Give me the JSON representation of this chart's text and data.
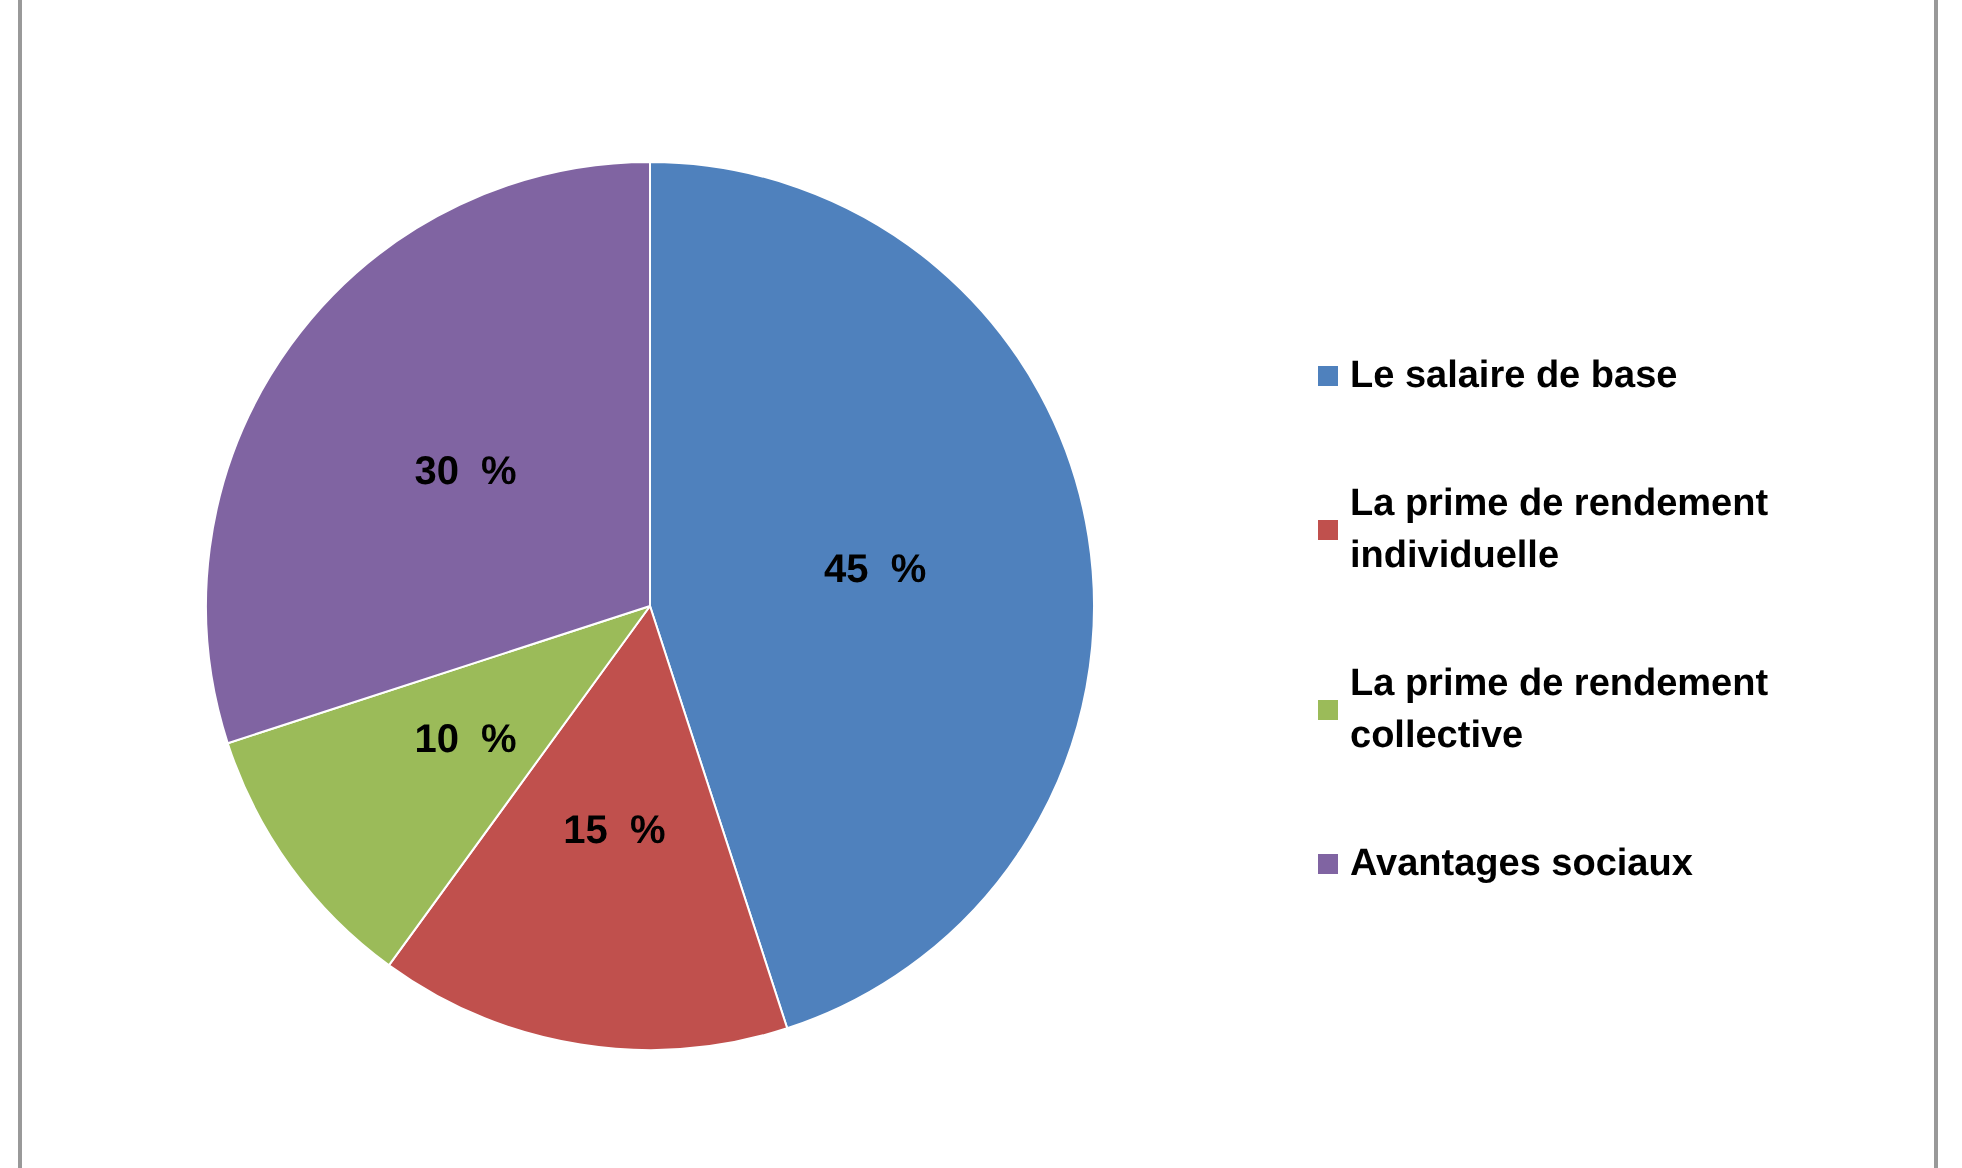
{
  "chart_data": {
    "type": "pie",
    "categories": [
      "Le salaire de base",
      "La prime de rendement individuelle",
      "La prime de rendement collective",
      "Avantages sociaux"
    ],
    "values": [
      45,
      15,
      10,
      30
    ],
    "colors": [
      "#4f81bd",
      "#c0504d",
      "#9bbb59",
      "#8064a2"
    ],
    "value_labels": [
      "45  %",
      "15  %",
      "10  %",
      "30  %"
    ],
    "legend": "right"
  }
}
